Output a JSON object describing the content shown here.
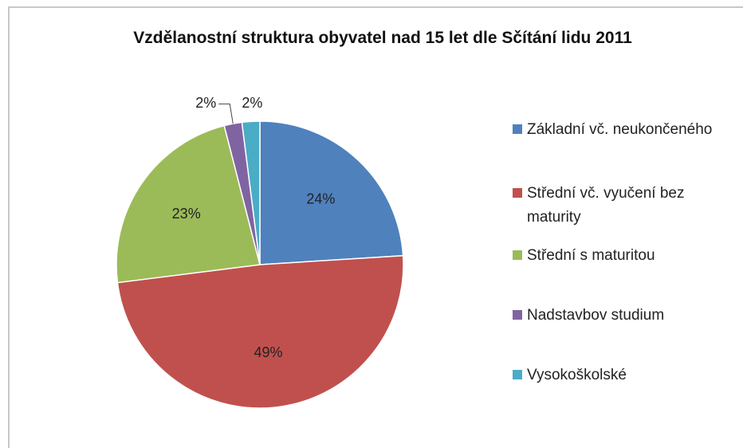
{
  "chart_data": {
    "type": "pie",
    "title": "Vzdělanostní struktura obyvatel nad 15 let dle Sčítání lidu 2011",
    "categories": [
      "Základní vč. neukončeného",
      "Střední vč. vyučení bez maturity",
      "Střední s maturitou",
      "Nadstavbov studium",
      "Vysokoškolské"
    ],
    "values": [
      24,
      49,
      23,
      2,
      2
    ],
    "value_labels": [
      "24%",
      "49%",
      "23%",
      "2%",
      "2%"
    ],
    "colors": [
      "#4f81bd",
      "#c0504d",
      "#9bbb59",
      "#8064a2",
      "#4bacc6"
    ],
    "legend": "right"
  }
}
